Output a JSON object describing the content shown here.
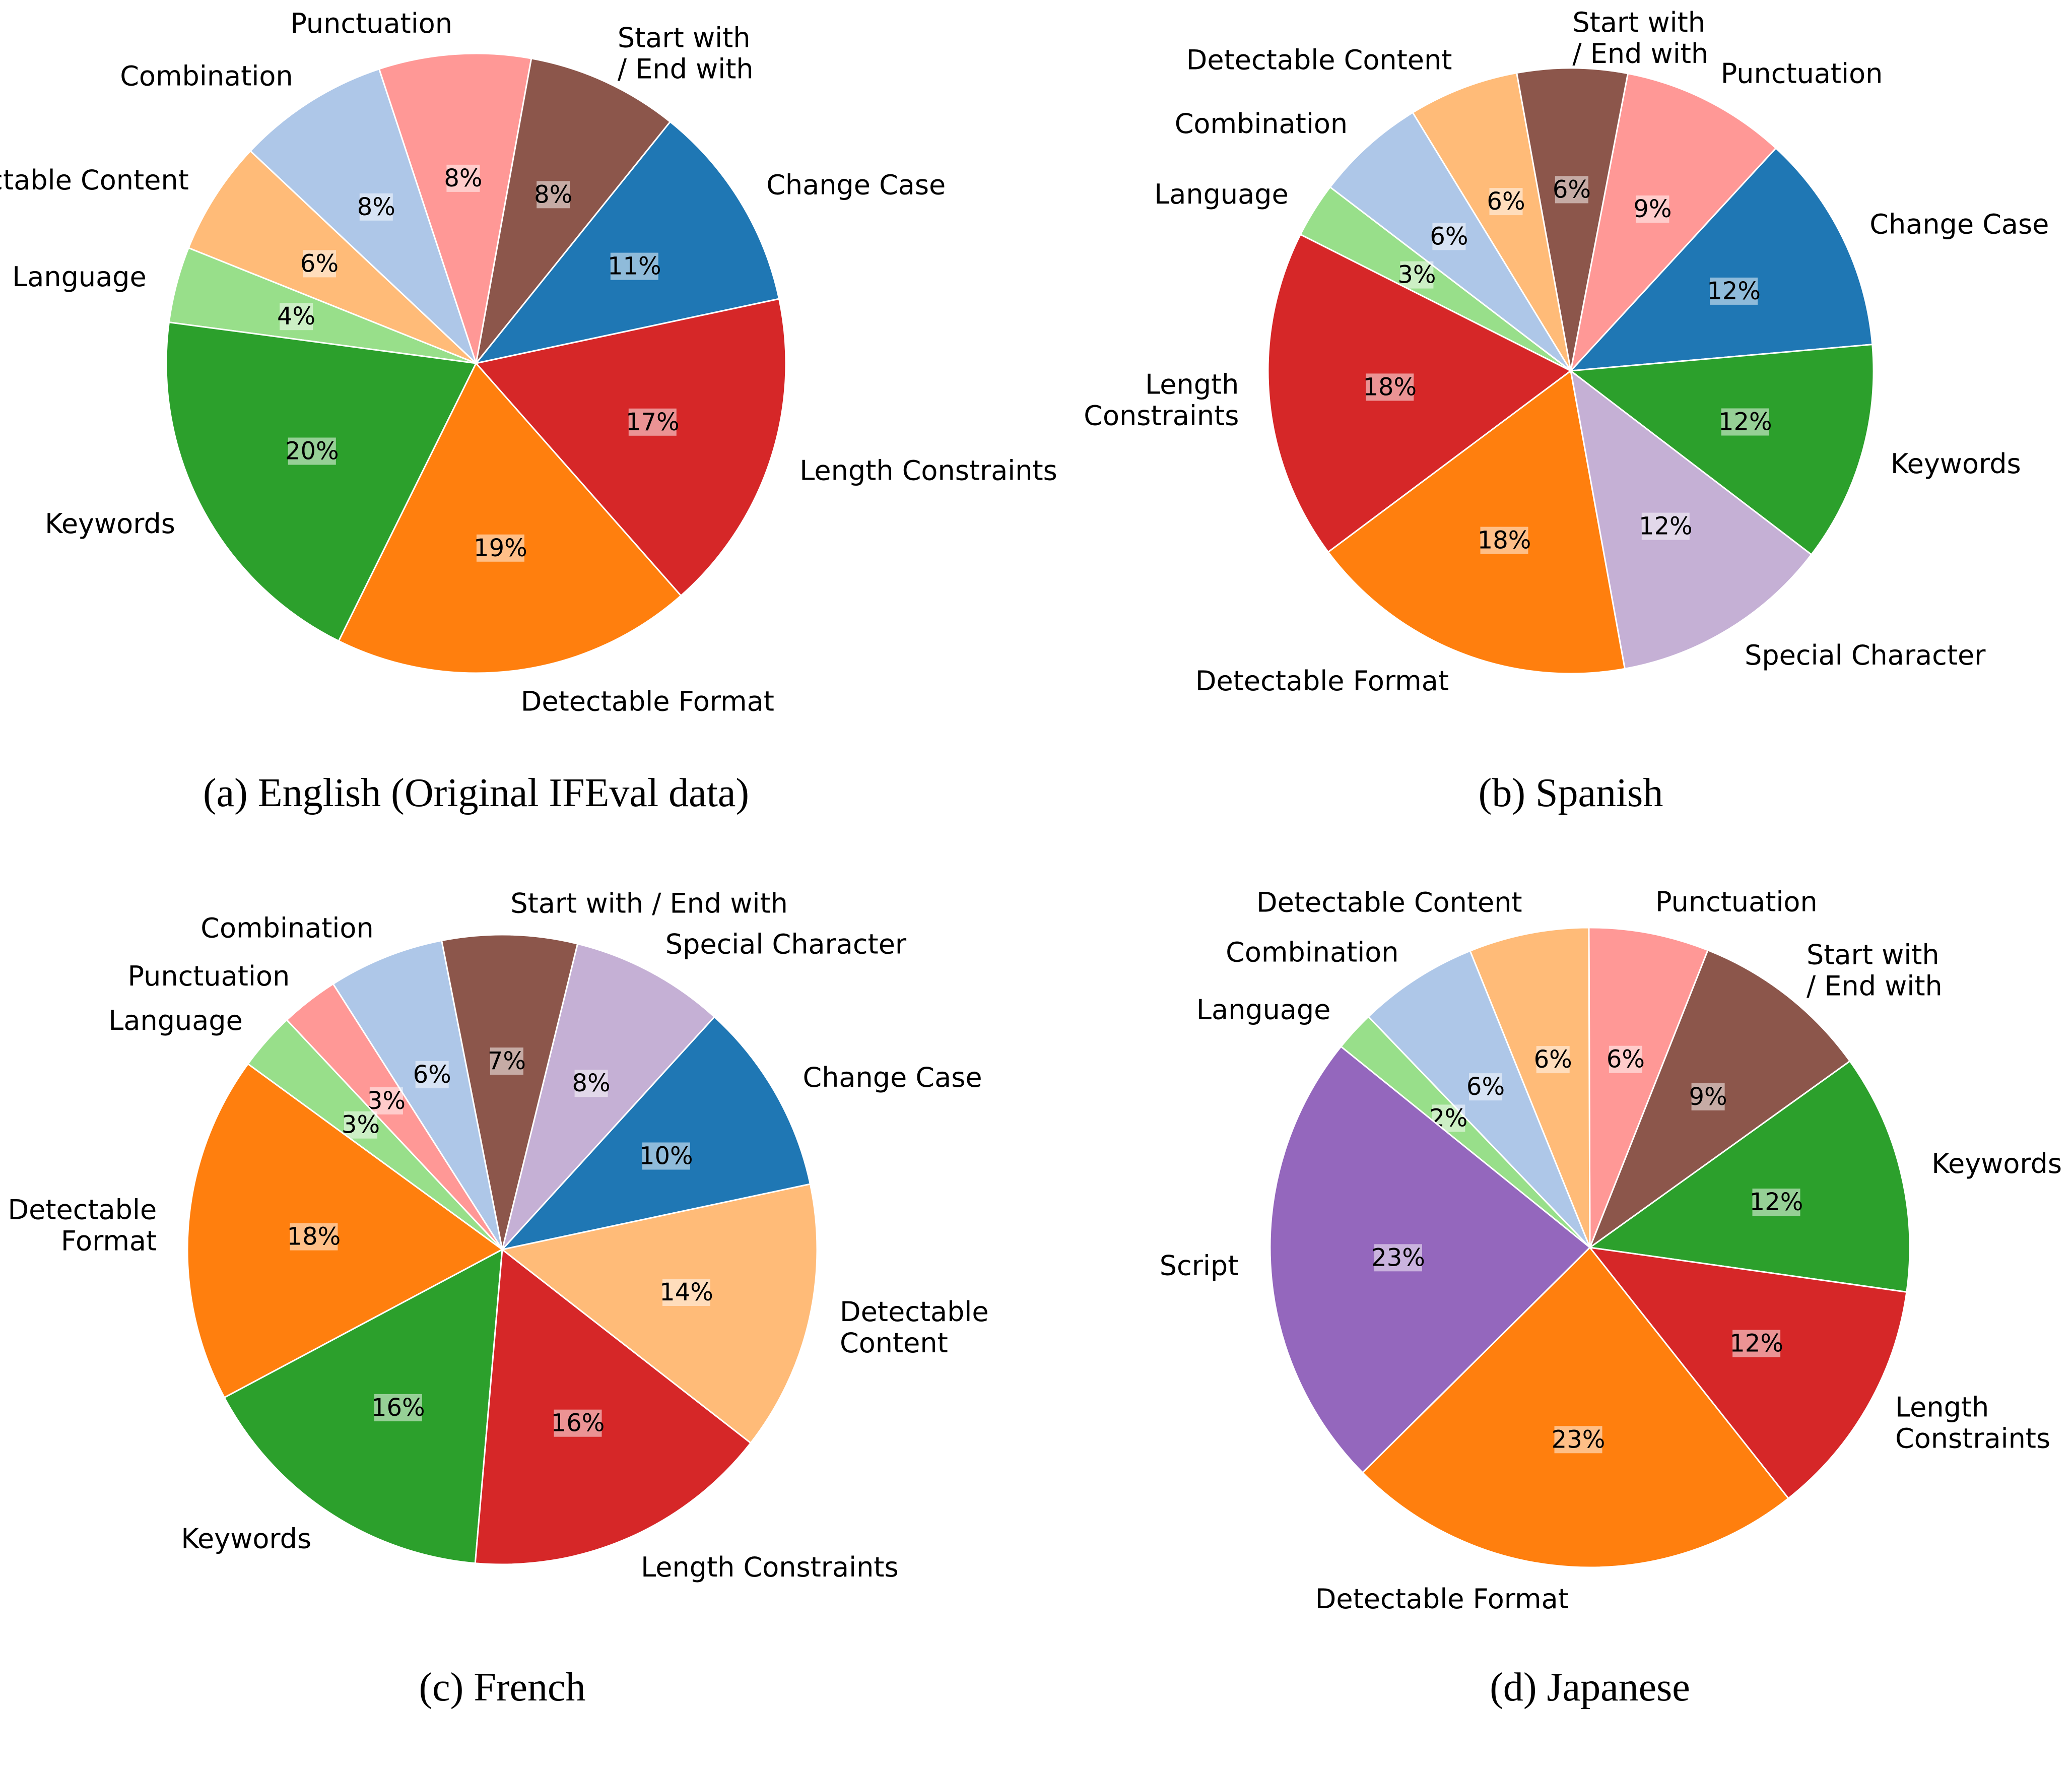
{
  "chart_data": [
    {
      "type": "pie",
      "caption": "(a) English (Original IFEval data)",
      "slices": [
        {
          "label": "Change Case",
          "value": 11,
          "pct_text": "11%",
          "color": "#1f77b4"
        },
        {
          "label": "Start with\n/ End with",
          "value": 8,
          "pct_text": "8%",
          "color": "#8c564b"
        },
        {
          "label": "Punctuation",
          "value": 8,
          "pct_text": "8%",
          "color": "#ff9896"
        },
        {
          "label": "Combination",
          "value": 8,
          "pct_text": "8%",
          "color": "#aec7e8"
        },
        {
          "label": "Detectable Content",
          "value": 6,
          "pct_text": "6%",
          "color": "#ffbb78"
        },
        {
          "label": "Language",
          "value": 4,
          "pct_text": "4%",
          "color": "#98df8a"
        },
        {
          "label": "Keywords",
          "value": 20,
          "pct_text": "20%",
          "color": "#2ca02c"
        },
        {
          "label": "Detectable Format",
          "value": 19,
          "pct_text": "19%",
          "color": "#ff7f0e"
        },
        {
          "label": "Length Constraints",
          "value": 17,
          "pct_text": "17%",
          "color": "#d62728"
        }
      ]
    },
    {
      "type": "pie",
      "caption": "(b) Spanish",
      "slices": [
        {
          "label": "Change Case",
          "value": 12,
          "pct_text": "12%",
          "color": "#1f77b4"
        },
        {
          "label": "Punctuation",
          "value": 9,
          "pct_text": "9%",
          "color": "#ff9896"
        },
        {
          "label": "Start with\n/ End with",
          "value": 6,
          "pct_text": "6%",
          "color": "#8c564b"
        },
        {
          "label": "Detectable Content",
          "value": 6,
          "pct_text": "6%",
          "color": "#ffbb78"
        },
        {
          "label": "Combination",
          "value": 6,
          "pct_text": "6%",
          "color": "#aec7e8"
        },
        {
          "label": "Language",
          "value": 3,
          "pct_text": "3%",
          "color": "#98df8a"
        },
        {
          "label": "Length\nConstraints",
          "value": 18,
          "pct_text": "18%",
          "color": "#d62728"
        },
        {
          "label": "Detectable Format",
          "value": 18,
          "pct_text": "18%",
          "color": "#ff7f0e"
        },
        {
          "label": "Special Character",
          "value": 12,
          "pct_text": "12%",
          "color": "#c5b0d5"
        },
        {
          "label": "Keywords",
          "value": 12,
          "pct_text": "12%",
          "color": "#2ca02c"
        }
      ]
    },
    {
      "type": "pie",
      "caption": "(c) French",
      "slices": [
        {
          "label": "Change Case",
          "value": 10,
          "pct_text": "10%",
          "color": "#1f77b4"
        },
        {
          "label": "Special Character",
          "value": 8,
          "pct_text": "8%",
          "color": "#c5b0d5"
        },
        {
          "label": "Start with / End with",
          "value": 7,
          "pct_text": "7%",
          "color": "#8c564b"
        },
        {
          "label": "Combination",
          "value": 6,
          "pct_text": "6%",
          "color": "#aec7e8"
        },
        {
          "label": "Punctuation",
          "value": 3,
          "pct_text": "3%",
          "color": "#ff9896"
        },
        {
          "label": "Language",
          "value": 3,
          "pct_text": "3%",
          "color": "#98df8a"
        },
        {
          "label": "Detectable\nFormat",
          "value": 18,
          "pct_text": "18%",
          "color": "#ff7f0e"
        },
        {
          "label": "Keywords",
          "value": 16,
          "pct_text": "16%",
          "color": "#2ca02c"
        },
        {
          "label": "Length Constraints",
          "value": 16,
          "pct_text": "16%",
          "color": "#d62728"
        },
        {
          "label": "Detectable\nContent",
          "value": 14,
          "pct_text": "14%",
          "color": "#ffbb78"
        }
      ]
    },
    {
      "type": "pie",
      "caption": "(d) Japanese",
      "slices": [
        {
          "label": "Keywords",
          "value": 12,
          "pct_text": "12%",
          "color": "#2ca02c"
        },
        {
          "label": "Start with\n/ End with",
          "value": 9,
          "pct_text": "9%",
          "color": "#8c564b"
        },
        {
          "label": "Punctuation",
          "value": 6,
          "pct_text": "6%",
          "color": "#ff9896"
        },
        {
          "label": "Detectable Content",
          "value": 6,
          "pct_text": "6%",
          "color": "#ffbb78"
        },
        {
          "label": "Combination",
          "value": 6,
          "pct_text": "6%",
          "color": "#aec7e8"
        },
        {
          "label": "Language",
          "value": 2,
          "pct_text": "2%",
          "color": "#98df8a"
        },
        {
          "label": "Script",
          "value": 23,
          "pct_text": "23%",
          "color": "#9467bd"
        },
        {
          "label": "Detectable Format",
          "value": 23,
          "pct_text": "23%",
          "color": "#ff7f0e"
        },
        {
          "label": "Length\nConstraints",
          "value": 12,
          "pct_text": "12%",
          "color": "#d62728"
        }
      ]
    }
  ]
}
